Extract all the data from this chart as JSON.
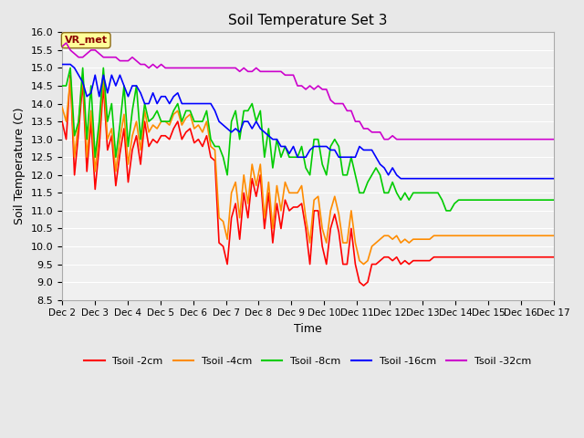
{
  "title": "Soil Temperature Set 3",
  "xlabel": "Time",
  "ylabel": "Soil Temperature (C)",
  "ylim": [
    8.5,
    16.0
  ],
  "yticks": [
    8.5,
    9.0,
    9.5,
    10.0,
    10.5,
    11.0,
    11.5,
    12.0,
    12.5,
    13.0,
    13.5,
    14.0,
    14.5,
    15.0,
    15.5,
    16.0
  ],
  "xtick_labels": [
    "Dec 2",
    "Dec 3",
    "Dec 4",
    "Dec 5",
    "Dec 6",
    "Dec 7",
    "Dec 8",
    "Dec 9",
    "Dec 10",
    "Dec 11",
    "Dec 12",
    "Dec 13",
    "Dec 14",
    "Dec 15",
    "Dec 16",
    "Dec 17"
  ],
  "colors": {
    "Tsoil_2cm": "#ff0000",
    "Tsoil_4cm": "#ff8c00",
    "Tsoil_8cm": "#00cc00",
    "Tsoil_16cm": "#0000ff",
    "Tsoil_32cm": "#cc00cc"
  },
  "legend_labels": [
    "Tsoil -2cm",
    "Tsoil -4cm",
    "Tsoil -8cm",
    "Tsoil -16cm",
    "Tsoil -32cm"
  ],
  "annotation_text": "VR_met",
  "annotation_color": "#8b0000",
  "annotation_bg": "#ffff99",
  "bg_color": "#e8e8e8",
  "plot_bg": "#f0f0f0",
  "grid_color": "#ffffff",
  "line_width": 1.2,
  "Tsoil_2cm": [
    13.5,
    13.0,
    14.8,
    12.0,
    13.2,
    14.6,
    12.1,
    13.5,
    11.6,
    12.8,
    14.5,
    12.7,
    13.1,
    11.7,
    12.6,
    13.3,
    11.8,
    12.7,
    13.1,
    12.3,
    13.5,
    12.8,
    13.0,
    12.9,
    13.1,
    13.1,
    13.0,
    13.3,
    13.5,
    13.0,
    13.2,
    13.3,
    12.9,
    13.0,
    12.8,
    13.1,
    12.5,
    12.4,
    10.1,
    10.0,
    9.5,
    10.8,
    11.2,
    10.2,
    11.5,
    10.8,
    11.9,
    11.4,
    12.0,
    10.5,
    11.5,
    10.1,
    11.2,
    10.5,
    11.3,
    11.0,
    11.1,
    11.1,
    11.2,
    10.5,
    9.5,
    11.0,
    11.0,
    10.0,
    9.5,
    10.5,
    10.9,
    10.4,
    9.5,
    9.5,
    10.5,
    9.5,
    9.0,
    8.9,
    9.0,
    9.5,
    9.5,
    9.6,
    9.7,
    9.7,
    9.6,
    9.7,
    9.5,
    9.6,
    9.5,
    9.6,
    9.6,
    9.6,
    9.6,
    9.6,
    9.7,
    9.7,
    9.7,
    9.7,
    9.7,
    9.7,
    9.7,
    9.7,
    9.7,
    9.7,
    9.7,
    9.7,
    9.7,
    9.7,
    9.7,
    9.7,
    9.7,
    9.7,
    9.7,
    9.7,
    9.7,
    9.7,
    9.7,
    9.7,
    9.7,
    9.7,
    9.7,
    9.7,
    9.7,
    9.7
  ],
  "Tsoil_4cm": [
    13.9,
    13.5,
    14.7,
    12.5,
    13.5,
    14.8,
    12.5,
    13.8,
    12.1,
    13.2,
    14.8,
    13.0,
    13.3,
    12.1,
    13.0,
    13.7,
    12.3,
    13.1,
    13.5,
    12.7,
    13.8,
    13.2,
    13.4,
    13.3,
    13.5,
    13.5,
    13.4,
    13.7,
    13.8,
    13.4,
    13.6,
    13.7,
    13.3,
    13.4,
    13.2,
    13.5,
    12.8,
    12.7,
    10.8,
    10.7,
    10.2,
    11.5,
    11.8,
    10.8,
    12.0,
    11.2,
    12.3,
    11.7,
    12.3,
    10.8,
    11.8,
    10.5,
    11.7,
    11.0,
    11.8,
    11.5,
    11.5,
    11.5,
    11.7,
    10.8,
    10.1,
    11.3,
    11.4,
    10.5,
    10.1,
    11.0,
    11.4,
    10.9,
    10.1,
    10.1,
    11.0,
    10.1,
    9.6,
    9.5,
    9.6,
    10.0,
    10.1,
    10.2,
    10.3,
    10.3,
    10.2,
    10.3,
    10.1,
    10.2,
    10.1,
    10.2,
    10.2,
    10.2,
    10.2,
    10.2,
    10.3,
    10.3,
    10.3,
    10.3,
    10.3,
    10.3,
    10.3,
    10.3,
    10.3,
    10.3,
    10.3,
    10.3,
    10.3,
    10.3,
    10.3,
    10.3,
    10.3,
    10.3,
    10.3,
    10.3,
    10.3,
    10.3,
    10.3,
    10.3,
    10.3,
    10.3,
    10.3,
    10.3,
    10.3,
    10.3
  ],
  "Tsoil_8cm": [
    14.5,
    14.5,
    15.0,
    13.1,
    13.5,
    15.0,
    13.0,
    14.5,
    12.5,
    13.5,
    15.0,
    13.5,
    14.0,
    12.5,
    13.4,
    14.5,
    12.8,
    13.8,
    14.5,
    13.0,
    14.0,
    13.5,
    13.6,
    13.8,
    13.5,
    13.5,
    13.5,
    13.8,
    14.0,
    13.5,
    13.8,
    13.8,
    13.5,
    13.5,
    13.5,
    13.8,
    13.0,
    12.8,
    12.8,
    12.5,
    12.0,
    13.5,
    13.8,
    13.0,
    13.8,
    13.8,
    14.0,
    13.5,
    13.8,
    12.5,
    13.3,
    12.2,
    13.0,
    12.5,
    12.8,
    12.5,
    12.5,
    12.5,
    12.8,
    12.2,
    12.0,
    13.0,
    13.0,
    12.3,
    12.0,
    12.8,
    13.0,
    12.8,
    12.0,
    12.0,
    12.5,
    12.0,
    11.5,
    11.5,
    11.8,
    12.0,
    12.2,
    12.0,
    11.5,
    11.5,
    11.8,
    11.5,
    11.3,
    11.5,
    11.3,
    11.5,
    11.5,
    11.5,
    11.5,
    11.5,
    11.5,
    11.5,
    11.3,
    11.0,
    11.0,
    11.2,
    11.3,
    11.3,
    11.3,
    11.3,
    11.3,
    11.3,
    11.3,
    11.3,
    11.3,
    11.3,
    11.3,
    11.3,
    11.3,
    11.3,
    11.3,
    11.3,
    11.3,
    11.3,
    11.3,
    11.3,
    11.3,
    11.3,
    11.3,
    11.3
  ],
  "Tsoil_16cm": [
    15.1,
    15.1,
    15.1,
    15.0,
    14.8,
    14.6,
    14.2,
    14.3,
    14.8,
    14.2,
    14.8,
    14.3,
    14.8,
    14.5,
    14.8,
    14.5,
    14.2,
    14.5,
    14.5,
    14.3,
    14.0,
    14.0,
    14.3,
    14.0,
    14.2,
    14.2,
    14.0,
    14.2,
    14.3,
    14.0,
    14.0,
    14.0,
    14.0,
    14.0,
    14.0,
    14.0,
    14.0,
    13.8,
    13.5,
    13.4,
    13.3,
    13.2,
    13.3,
    13.2,
    13.5,
    13.5,
    13.3,
    13.5,
    13.3,
    13.2,
    13.1,
    13.0,
    13.0,
    12.8,
    12.8,
    12.6,
    12.8,
    12.5,
    12.5,
    12.5,
    12.7,
    12.8,
    12.8,
    12.8,
    12.8,
    12.7,
    12.7,
    12.5,
    12.5,
    12.5,
    12.5,
    12.5,
    12.8,
    12.7,
    12.7,
    12.7,
    12.5,
    12.3,
    12.2,
    12.0,
    12.2,
    12.0,
    11.9,
    11.9,
    11.9,
    11.9,
    11.9,
    11.9,
    11.9,
    11.9,
    11.9,
    11.9,
    11.9,
    11.9,
    11.9,
    11.9,
    11.9,
    11.9,
    11.9,
    11.9,
    11.9,
    11.9,
    11.9,
    11.9,
    11.9,
    11.9,
    11.9,
    11.9,
    11.9,
    11.9,
    11.9,
    11.9,
    11.9,
    11.9,
    11.9,
    11.9,
    11.9,
    11.9,
    11.9,
    11.9
  ],
  "Tsoil_32cm": [
    15.6,
    15.7,
    15.5,
    15.4,
    15.3,
    15.3,
    15.4,
    15.5,
    15.5,
    15.4,
    15.3,
    15.3,
    15.3,
    15.3,
    15.2,
    15.2,
    15.2,
    15.3,
    15.2,
    15.1,
    15.1,
    15.0,
    15.1,
    15.0,
    15.1,
    15.0,
    15.0,
    15.0,
    15.0,
    15.0,
    15.0,
    15.0,
    15.0,
    15.0,
    15.0,
    15.0,
    15.0,
    15.0,
    15.0,
    15.0,
    15.0,
    15.0,
    15.0,
    14.9,
    15.0,
    14.9,
    14.9,
    15.0,
    14.9,
    14.9,
    14.9,
    14.9,
    14.9,
    14.9,
    14.8,
    14.8,
    14.8,
    14.5,
    14.5,
    14.4,
    14.5,
    14.4,
    14.5,
    14.4,
    14.4,
    14.1,
    14.0,
    14.0,
    14.0,
    13.8,
    13.8,
    13.5,
    13.5,
    13.3,
    13.3,
    13.2,
    13.2,
    13.2,
    13.0,
    13.0,
    13.1,
    13.0,
    13.0,
    13.0,
    13.0,
    13.0,
    13.0,
    13.0,
    13.0,
    13.0,
    13.0,
    13.0,
    13.0,
    13.0,
    13.0,
    13.0,
    13.0,
    13.0,
    13.0,
    13.0,
    13.0,
    13.0,
    13.0,
    13.0,
    13.0,
    13.0,
    13.0,
    13.0,
    13.0,
    13.0,
    13.0,
    13.0,
    13.0,
    13.0,
    13.0,
    13.0,
    13.0,
    13.0,
    13.0,
    13.0
  ],
  "n_points": 120
}
